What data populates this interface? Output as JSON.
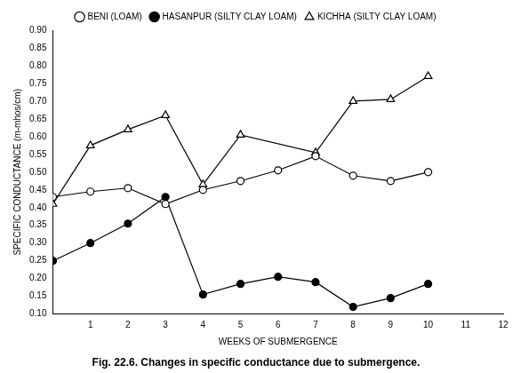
{
  "chart_data": {
    "type": "line",
    "title": "Fig. 22.6. Changes in specific conductance due to submergence.",
    "x_label": "WEEKS OF SUBMERGENCE",
    "y_label": "SPECIFIC CONDUCTANCE (m-mhos/cm)",
    "xlim": [
      0,
      12
    ],
    "xticks": [
      1,
      2,
      3,
      4,
      5,
      6,
      7,
      8,
      9,
      10,
      11,
      12
    ],
    "ylim": [
      0.1,
      0.9
    ],
    "yticks": [
      {
        "value": 0.1,
        "label": "0.10"
      },
      {
        "value": 0.15,
        "label": "0.15"
      },
      {
        "value": 0.2,
        "label": "0.20"
      },
      {
        "value": 0.25,
        "label": "0.25"
      },
      {
        "value": 0.3,
        "label": "0.30"
      },
      {
        "value": 0.35,
        "label": "0.35"
      },
      {
        "value": 0.4,
        "label": "0.40"
      },
      {
        "value": 0.45,
        "label": "0.45"
      },
      {
        "value": 0.5,
        "label": "0.50"
      },
      {
        "value": 0.55,
        "label": "0.55"
      },
      {
        "value": 0.6,
        "label": "0.60"
      },
      {
        "value": 0.65,
        "label": "0.65"
      },
      {
        "value": 0.7,
        "label": "0.70"
      },
      {
        "value": 0.75,
        "label": "0.75"
      },
      {
        "value": 0.8,
        "label": "0.80"
      },
      {
        "value": 0.85,
        "label": "0.85"
      },
      {
        "value": 0.9,
        "label": "0.90"
      }
    ],
    "grid": false,
    "legend": "top",
    "series": [
      {
        "name": "BENI (LOAM)",
        "color": "#000000",
        "marker": "open_circle",
        "x": [
          0,
          1,
          2,
          3,
          4,
          5,
          6,
          7,
          8,
          9,
          10
        ],
        "values": [
          0.43,
          0.445,
          0.455,
          0.41,
          0.45,
          0.475,
          0.505,
          0.545,
          0.49,
          0.475,
          0.5
        ]
      },
      {
        "name": "HASANPUR (SILTY CLAY LOAM)",
        "color": "#000000",
        "marker": "filled_circle",
        "x": [
          0,
          1,
          2,
          3,
          4,
          5,
          6,
          7,
          8,
          9,
          10
        ],
        "values": [
          0.25,
          0.3,
          0.355,
          0.43,
          0.155,
          0.185,
          0.205,
          0.19,
          0.12,
          0.145,
          0.185
        ]
      },
      {
        "name": "KICHHA (SILTY CLAY LOAM)",
        "color": "#000000",
        "marker": "open_triangle",
        "x": [
          0,
          1,
          2,
          3,
          4,
          5,
          7,
          8,
          9,
          10
        ],
        "values": [
          0.41,
          0.575,
          0.62,
          0.66,
          0.465,
          0.605,
          0.555,
          0.7,
          0.705,
          0.77
        ]
      }
    ]
  }
}
